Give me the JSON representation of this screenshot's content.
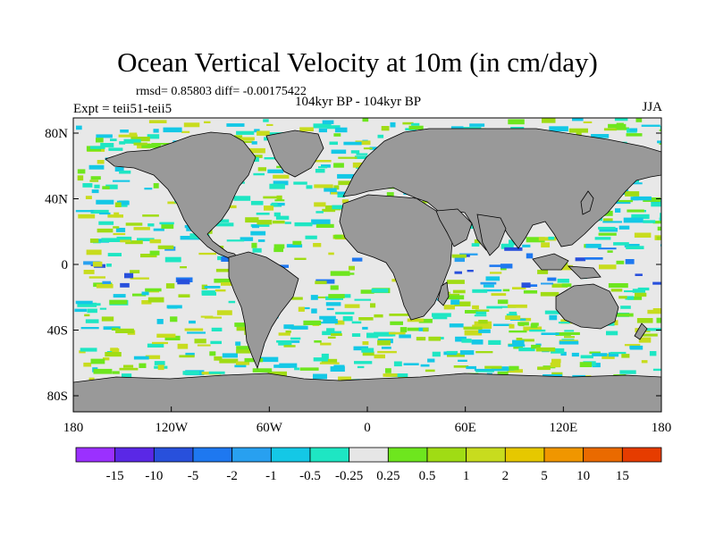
{
  "title": "Ocean Vertical Velocity at 10m (in cm/day)",
  "stats": "rmsd= 0.85803 diff= -0.00175422",
  "experiment": "Expt = teii51-teii5",
  "period": "104kyr BP - 104kyr BP",
  "season": "JJA",
  "axes": {
    "y_ticks": [
      "80N",
      "40N",
      "0",
      "40S",
      "80S"
    ],
    "x_ticks": [
      "180",
      "120W",
      "60W",
      "0",
      "60E",
      "120E",
      "180"
    ]
  },
  "colorbar": {
    "labels": [
      "-15",
      "-10",
      "-5",
      "-2",
      "-1",
      "-0.5",
      "-0.25",
      "0.25",
      "0.5",
      "1",
      "2",
      "5",
      "10",
      "15"
    ],
    "colors": [
      "#9b30ff",
      "#5a28e6",
      "#2850dc",
      "#1e78f0",
      "#28a0f0",
      "#14c8e6",
      "#1ee6c3",
      "#e6e6e6",
      "#6ee61e",
      "#a0dc14",
      "#c8dc1e",
      "#e6c800",
      "#f09600",
      "#ea6a00",
      "#e63c00"
    ]
  },
  "map_colors": {
    "land": "#999999",
    "ocean_background": "#e8e8e8",
    "coastline": "#000000"
  }
}
